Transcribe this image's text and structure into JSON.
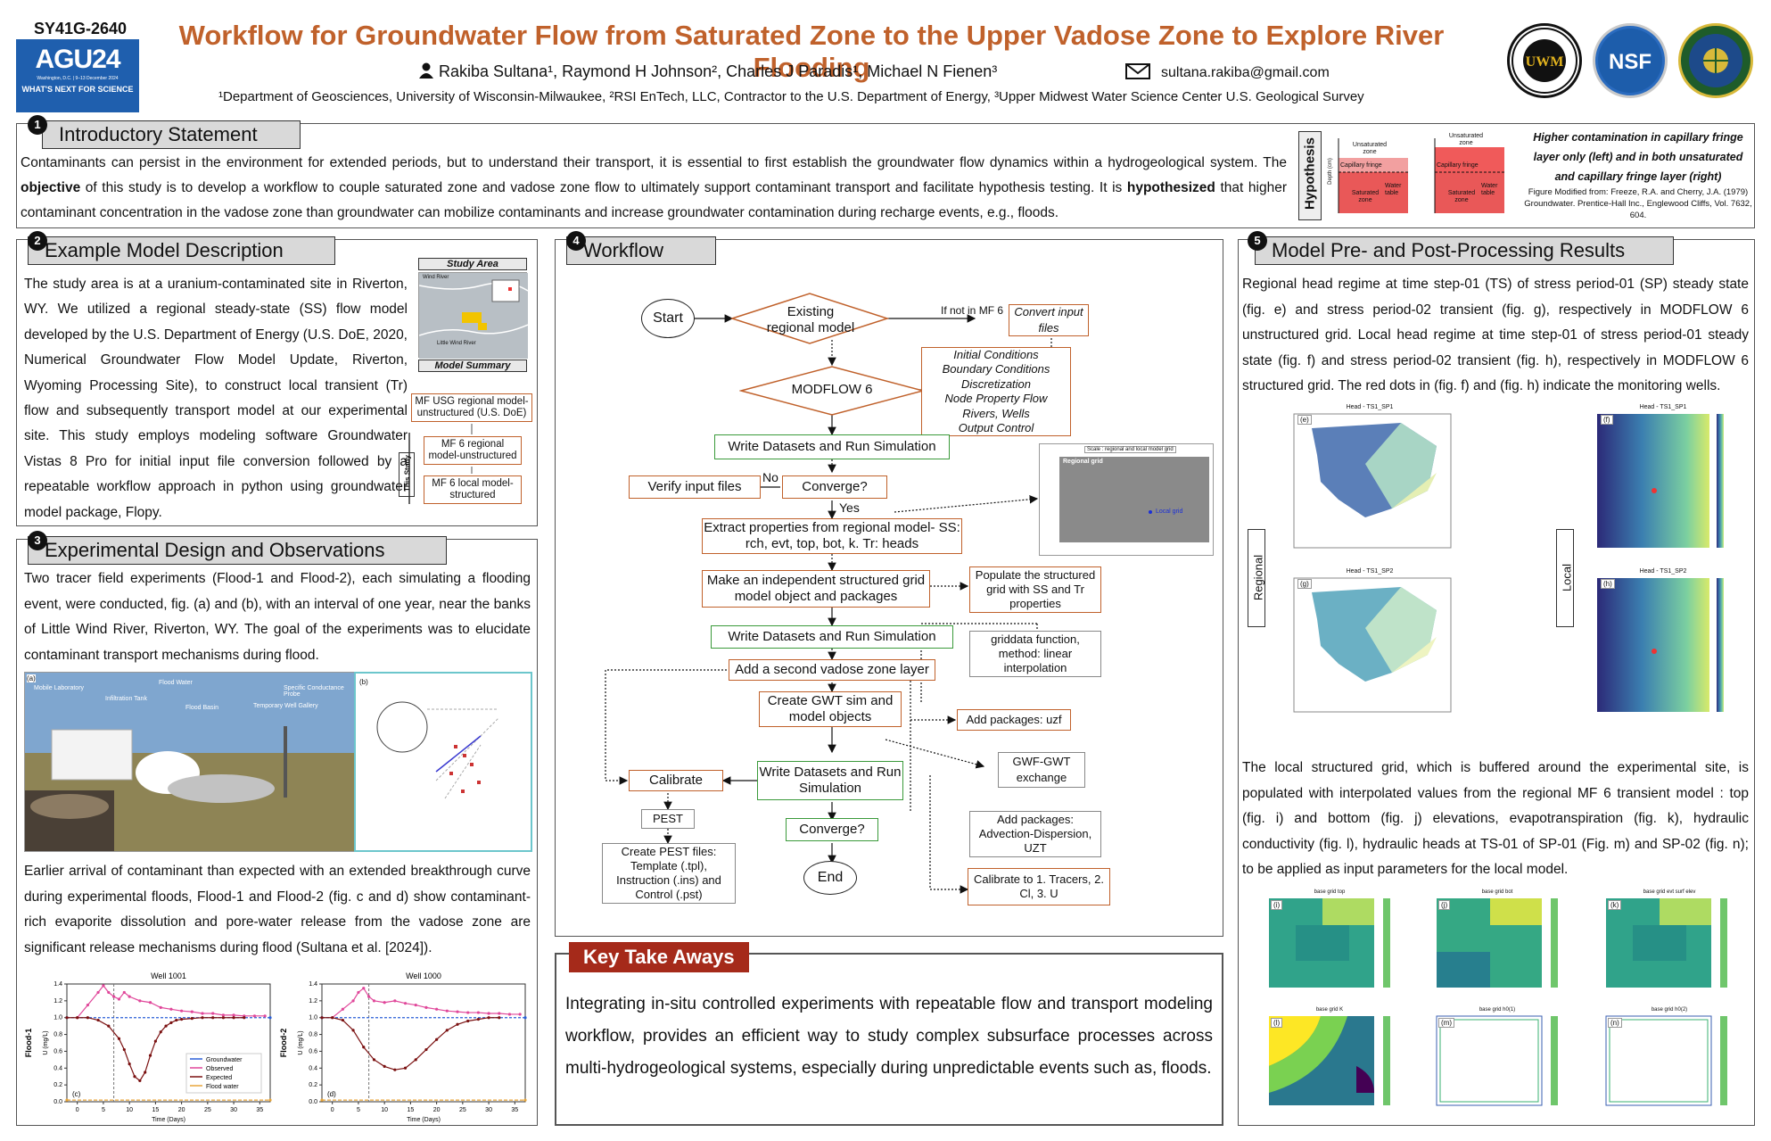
{
  "header": {
    "poster_id": "SY41G-2640",
    "agu_logo": {
      "main": "AGU24",
      "sub": "Washington, D.C. | 9–13 December 2024",
      "tagline": "WHAT'S NEXT FOR SCIENCE"
    },
    "title": "Workflow for Groundwater Flow from Saturated Zone to the Upper Vadose Zone to Explore River Flooding",
    "authors": "Rakiba Sultana¹, Raymond H Johnson², Charles J Paradis¹, Michael N Fienen³",
    "email": "sultana.rakiba@gmail.com",
    "affiliations": "¹Department of Geosciences, University of Wisconsin-Milwaukee, ²RSI EnTech, LLC, Contractor to the U.S. Department of Energy, ³Upper Midwest Water Science Center U.S. Geological Survey",
    "logos": [
      {
        "name": "UWM",
        "icon": "university-seal-icon"
      },
      {
        "name": "NSF",
        "icon": "nsf-icon"
      },
      {
        "name": "DOE",
        "icon": "doe-seal-icon"
      }
    ]
  },
  "intro": {
    "number": "1",
    "heading": "Introductory Statement",
    "text_1": "Contaminants can persist in the environment for extended periods, but to understand their transport, it is essential to first establish the groundwater flow dynamics within a hydrogeological system. The ",
    "bold_1": "objective",
    "text_2": " of this study is to develop a workflow to couple saturated zone and vadose zone flow to ultimately support contaminant transport and facilitate hypothesis testing. It is ",
    "bold_2": "hypothesized",
    "text_3": " that higher contaminant concentration in the vadose zone than groundwater can mobilize contaminants and increase groundwater contamination during recharge events, e.g., floods.",
    "hypothesis_label": "Hypothesis",
    "hypothesis_caption": "Higher contamination in capillary fringe layer only (left) and in both unsaturated and capillary fringe layer (right)",
    "figure_credit_1": "Figure Modified from: Freeze, R.A. and Cherry, J.A. (1979)",
    "figure_credit_2": "Groundwater. Prentice-Hall Inc., Englewood Cliffs, Vol. 7632, 604.",
    "diagram_labels": {
      "unsat": "Unsaturated zone",
      "cap": "Capillary fringe",
      "sat": "Saturated zone",
      "wt": "Water table",
      "depth": "Depth (cm)"
    }
  },
  "model_desc": {
    "number": "2",
    "heading": "Example Model Description",
    "text": "The study area is at a uranium-contaminated site in Riverton, WY. We utilized a regional steady-state (SS) flow model developed by the U.S. Department of Energy (U.S. DoE, 2020, Numerical Groundwater Flow Model Update, Riverton, Wyoming Processing Site), to construct local transient (Tr) flow and subsequently transport model at our experimental site. This study employs modeling software Groundwater Vistas 8 Pro for initial input file conversion followed by a repeatable workflow approach in python using groundwater model package, Flopy.",
    "study_area_label": "Study Area",
    "map_labels": {
      "wind_river": "Wind River",
      "little_wind": "Little Wind River"
    },
    "summary_label": "Model Summary",
    "summary_items": [
      "MF USG regional model-unstructured (U.S. DoE)",
      "MF 6 regional model-unstructured",
      "MF 6 local model-structured"
    ],
    "this_study": "This Study"
  },
  "experimental": {
    "number": "3",
    "heading": "Experimental Design and Observations",
    "text_1": "Two tracer field experiments (Flood-1 and Flood-2), each simulating a flooding event, were conducted, fig. (a) and (b), with an interval of one year, near the banks of Little Wind River, Riverton, WY. The goal of the experiments was to elucidate contaminant transport mechanisms during flood.",
    "photo_labels": [
      "Mobile Laboratory",
      "Infiltration Tank",
      "Flood Water",
      "Flood Basin",
      "Specific Conductance Probe",
      "Temporary Well Gallery"
    ],
    "text_2": "Earlier arrival of contaminant than expected with an extended breakthrough curve during experimental floods, Flood-1 and Flood-2 (fig. c and d) show contaminant-rich evaporite dissolution and pore-water release from the vadose zone are significant release mechanisms during flood (Sultana et al. [2024])."
  },
  "workflow": {
    "number": "4",
    "heading": "Workflow",
    "start": "Start",
    "existing": "Existing regional model",
    "if_not": "If not in MF 6",
    "convert": "Convert input files",
    "modflow": "MODFLOW 6",
    "inputs": [
      "Initial Conditions",
      "Boundary Conditions",
      "Discretization",
      "Node Property Flow",
      "Rivers, Wells",
      "Output Control"
    ],
    "write1": "Write Datasets and Run Simulation",
    "verify": "Verify input files",
    "no": "No",
    "converge": "Converge?",
    "yes": "Yes",
    "extract": "Extract properties from regional model- SS: rch, evt, top, bot, k. Tr: heads",
    "make_grid": "Make an independent structured grid model object and packages",
    "populate": "Populate the structured grid with SS and Tr properties",
    "griddata": "griddata function, method: linear interpolation",
    "write2": "Write Datasets and Run Simulation",
    "add_vadose": "Add a second vadose zone layer",
    "add_uzf": "Add packages: uzf",
    "gwt": "Create GWT sim and model objects",
    "gwf_gwt": "GWF-GWT exchange",
    "write3": "Write Datasets and Run Simulation",
    "calibrate": "Calibrate",
    "pest": "PEST",
    "pest_files": "Create PEST files: Template (.tpl), Instruction (.ins) and Control (.pst)",
    "converge2": "Converge?",
    "end": "End",
    "add_adv": "Add packages: Advection-Dispersion, UZT",
    "calibrate_to": "Calibrate to 1. Tracers, 2. Cl, 3. U",
    "grid_fig_title": "Scale : regional and local model grid",
    "regional_grid": "Regional grid",
    "local_grid": "Local grid"
  },
  "key": {
    "heading": "Key Take Aways",
    "text": "Integrating in-situ controlled experiments with repeatable flow and transport modeling workflow, provides an efficient way to study complex subsurface processes across multi-hydrogeological systems, especially during unpredictable events such as, floods."
  },
  "results": {
    "number": "5",
    "heading": "Model Pre- and Post-Processing Results",
    "text_1": "Regional head regime at time step-01 (TS) of stress period-01 (SP) steady state (fig. e) and stress period-02 transient (fig. g), respectively in MODFLOW 6 unstructured grid. Local head regime at time step-01 of stress period-01 steady state  (fig. f) and stress period-02 transient (fig. h), respectively in MODFLOW 6 structured grid. The red dots in (fig. f) and (fig. h) indicate the monitoring wells.",
    "regional": "Regional",
    "local": "Local",
    "fig_titles": [
      "Head - TS1_SP1",
      "Head - TS1_SP1",
      "Head - TS1_SP2",
      "Head - TS1_SP2"
    ],
    "fig_letters": [
      "(e)",
      "(f)",
      "(g)",
      "(h)"
    ],
    "text_2": "The local structured grid, which is buffered around the experimental site, is populated with interpolated values from the regional MF 6 transient model : top (fig. i) and bottom (fig. j) elevations, evapotranspiration (fig. k), hydraulic conductivity (fig. l), hydraulic heads at TS-01 of SP-01 (Fig. m) and SP-02 (fig. n); to be applied as input parameters for the local model.",
    "small_letters": [
      "(i)",
      "(j)",
      "(k)",
      "(l)",
      "(m)",
      "(n)"
    ],
    "small_titles": [
      "base grid top",
      "base grid bot",
      "base grid evt surf elev",
      "base grid K",
      "base grid h0(1)",
      "base grid h0(2)"
    ]
  },
  "chart_data": [
    {
      "type": "line",
      "title": "Well 1001",
      "panel": "(c)",
      "ylabel": "U (mg/L)",
      "side_label": "Flood-1",
      "xlabel": "Time (Days)",
      "xlim": [
        -2,
        37
      ],
      "ylim": [
        0,
        1.4
      ],
      "x_ticks": [
        0,
        5,
        10,
        15,
        20,
        25,
        30,
        35
      ],
      "y_ticks": [
        0.0,
        0.2,
        0.4,
        0.6,
        0.8,
        1.0,
        1.2,
        1.4
      ],
      "series": [
        {
          "name": "Groundwater",
          "color": "#2a5fd8",
          "x": [
            -2,
            37
          ],
          "y": [
            1.0,
            1.0
          ]
        },
        {
          "name": "Observed",
          "color": "#e0479a",
          "x": [
            0,
            2,
            4,
            5,
            6,
            7,
            8,
            9,
            10,
            12,
            14,
            16,
            18,
            20,
            22,
            24,
            26,
            28,
            30,
            32,
            34,
            36
          ],
          "y": [
            1.0,
            1.15,
            1.3,
            1.38,
            1.3,
            1.25,
            1.22,
            1.3,
            1.25,
            1.2,
            1.18,
            1.12,
            1.1,
            1.08,
            1.07,
            1.05,
            1.05,
            1.03,
            1.03,
            1.02,
            1.02,
            1.02
          ]
        },
        {
          "name": "Expected",
          "color": "#7a1010",
          "x": [
            -2,
            0,
            2,
            4,
            6,
            8,
            9,
            10,
            11,
            12,
            13,
            14,
            15,
            16,
            17,
            18,
            19,
            20,
            22,
            24,
            26,
            28,
            30,
            32
          ],
          "y": [
            1.0,
            1.0,
            1.0,
            0.97,
            0.9,
            0.75,
            0.62,
            0.45,
            0.3,
            0.25,
            0.35,
            0.55,
            0.72,
            0.83,
            0.9,
            0.94,
            0.97,
            0.98,
            0.99,
            1.0,
            1.0,
            1.0,
            1.0,
            1.0
          ]
        },
        {
          "name": "Flood water",
          "color": "#e8a63a",
          "x": [
            -2,
            37
          ],
          "y": [
            0.02,
            0.02
          ]
        }
      ]
    },
    {
      "type": "line",
      "title": "Well 1000",
      "panel": "(d)",
      "ylabel": "U (mg/L)",
      "side_label": "Flood-2",
      "xlabel": "Time (Days)",
      "xlim": [
        -2,
        37
      ],
      "ylim": [
        0,
        1.4
      ],
      "x_ticks": [
        0,
        5,
        10,
        15,
        20,
        25,
        30,
        35
      ],
      "y_ticks": [
        0.0,
        0.2,
        0.4,
        0.6,
        0.8,
        1.0,
        1.2,
        1.4
      ],
      "series": [
        {
          "name": "Groundwater",
          "color": "#2a5fd8",
          "x": [
            -2,
            37
          ],
          "y": [
            1.0,
            1.0
          ]
        },
        {
          "name": "Observed",
          "color": "#e0479a",
          "x": [
            0,
            2,
            4,
            5,
            6,
            7,
            8,
            10,
            12,
            14,
            16,
            18,
            20,
            22,
            24,
            26,
            28,
            30,
            32,
            34,
            36
          ],
          "y": [
            1.0,
            1.1,
            1.2,
            1.3,
            1.35,
            1.25,
            1.2,
            1.18,
            1.2,
            1.17,
            1.15,
            1.12,
            1.1,
            1.08,
            1.07,
            1.06,
            1.06,
            1.05,
            1.05,
            1.04,
            1.04
          ]
        },
        {
          "name": "Expected",
          "color": "#7a1010",
          "x": [
            -2,
            0,
            2,
            4,
            6,
            8,
            10,
            12,
            14,
            16,
            18,
            20,
            22,
            24,
            26,
            28,
            30,
            32
          ],
          "y": [
            1.0,
            1.0,
            0.97,
            0.85,
            0.65,
            0.5,
            0.42,
            0.38,
            0.4,
            0.5,
            0.62,
            0.74,
            0.85,
            0.92,
            0.96,
            0.98,
            1.0,
            1.0
          ]
        },
        {
          "name": "Flood water",
          "color": "#e8a63a",
          "x": [
            -2,
            37
          ],
          "y": [
            0.02,
            0.02
          ]
        }
      ]
    }
  ]
}
